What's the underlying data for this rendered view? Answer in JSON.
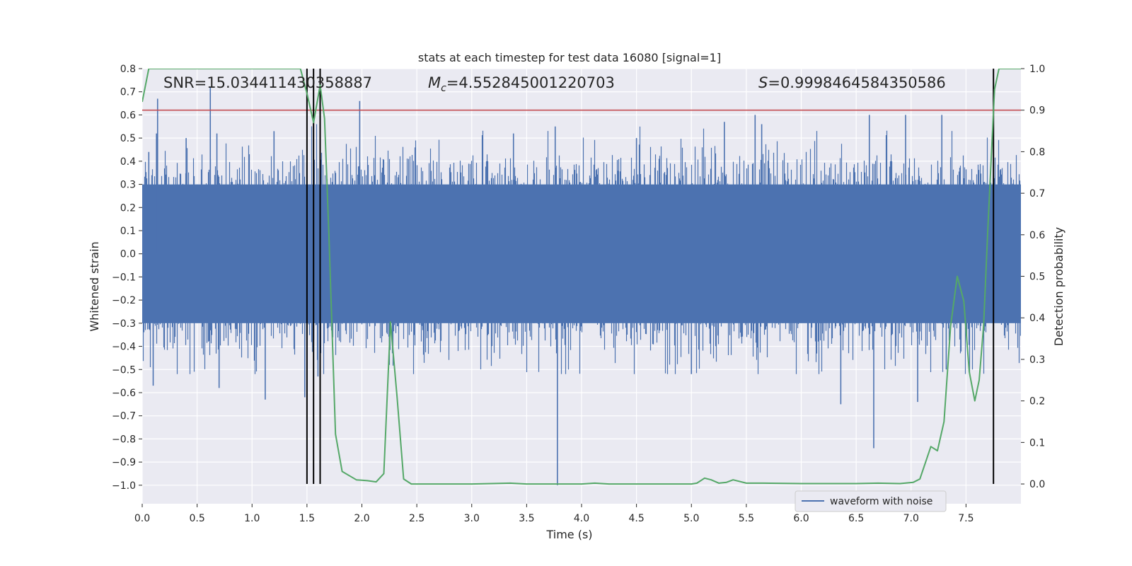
{
  "chart_data": {
    "type": "line",
    "title": "stats at each timestep for test data 16080 [signal=1]",
    "xlabel": "Time (s)",
    "ylabel": "Whitened strain",
    "y2label": "Detection probability",
    "xlim": [
      0.0,
      8.0
    ],
    "ylim": [
      -1.08,
      0.8
    ],
    "y2lim": [
      -0.0476,
      1.0
    ],
    "x_ticks": [
      0.0,
      0.5,
      1.0,
      1.5,
      2.0,
      2.5,
      3.0,
      3.5,
      4.0,
      4.5,
      5.0,
      5.5,
      6.0,
      6.5,
      7.0,
      7.5
    ],
    "x_tick_labels": [
      "0.0",
      "0.5",
      "1.0",
      "1.5",
      "2.0",
      "2.5",
      "3.0",
      "3.5",
      "4.0",
      "4.5",
      "5.0",
      "5.5",
      "6.0",
      "6.5",
      "7.0",
      "7.5"
    ],
    "y_ticks": [
      0.8,
      0.7,
      0.6,
      0.5,
      0.4,
      0.3,
      0.2,
      0.1,
      0.0,
      -0.1,
      -0.2,
      -0.3,
      -0.4,
      -0.5,
      -0.6,
      -0.7,
      -0.8,
      -0.9,
      -1.0
    ],
    "y_tick_labels": [
      "0.8",
      "0.7",
      "0.6",
      "0.5",
      "0.4",
      "0.3",
      "0.2",
      "0.1",
      "0.0",
      "−0.1",
      "−0.2",
      "−0.3",
      "−0.4",
      "−0.5",
      "−0.6",
      "−0.7",
      "−0.8",
      "−0.9",
      "−1.0"
    ],
    "y2_ticks": [
      1.0,
      0.9,
      0.8,
      0.7,
      0.6,
      0.5,
      0.4,
      0.3,
      0.2,
      0.1,
      0.0
    ],
    "y2_tick_labels": [
      "1.0",
      "0.9",
      "0.8",
      "0.7",
      "0.6",
      "0.5",
      "0.4",
      "0.3",
      "0.2",
      "0.1",
      "0.0"
    ],
    "grid": true,
    "legend": {
      "position": "lower-right",
      "entries": [
        "waveform with noise"
      ]
    },
    "annotations": {
      "snr": "SNR=15.034411430358887",
      "mc_symbol": "M",
      "mc_sub": "c",
      "mc_value": "=4.552845001220703",
      "s_symbol": "S",
      "s_value": "=0.9998464584350586"
    },
    "threshold_line": {
      "axis": "y2",
      "value": 0.9,
      "color": "#c44e52"
    },
    "vertical_lines": {
      "x": [
        1.5,
        1.56,
        1.62,
        7.75
      ],
      "y2_range": [
        0.0,
        1.0
      ],
      "color": "#000000"
    },
    "waveform": {
      "name": "waveform with noise",
      "color": "#4c72b0",
      "x_range": [
        0.0,
        8.0
      ],
      "envelope_core": [
        -0.3,
        0.3
      ],
      "typical_excursion": [
        -0.5,
        0.55
      ],
      "spikes": [
        {
          "x": 0.06,
          "y": 0.44
        },
        {
          "x": 0.1,
          "y": -0.57
        },
        {
          "x": 0.13,
          "y": 0.52
        },
        {
          "x": 0.14,
          "y": 0.67
        },
        {
          "x": 0.4,
          "y": 0.5
        },
        {
          "x": 0.62,
          "y": 0.72
        },
        {
          "x": 0.68,
          "y": 0.52
        },
        {
          "x": 0.7,
          "y": -0.58
        },
        {
          "x": 1.12,
          "y": -0.63
        },
        {
          "x": 1.2,
          "y": 0.53
        },
        {
          "x": 1.48,
          "y": -0.62
        },
        {
          "x": 1.62,
          "y": 0.63
        },
        {
          "x": 1.6,
          "y": -0.53
        },
        {
          "x": 1.98,
          "y": 0.66
        },
        {
          "x": 2.25,
          "y": -0.48
        },
        {
          "x": 3.38,
          "y": 0.52
        },
        {
          "x": 3.76,
          "y": 0.55
        },
        {
          "x": 3.78,
          "y": -1.0
        },
        {
          "x": 4.5,
          "y": 0.5
        },
        {
          "x": 5.0,
          "y": -0.52
        },
        {
          "x": 5.3,
          "y": 0.57
        },
        {
          "x": 5.58,
          "y": 0.6
        },
        {
          "x": 5.64,
          "y": 0.56
        },
        {
          "x": 6.36,
          "y": -0.65
        },
        {
          "x": 6.62,
          "y": 0.6
        },
        {
          "x": 6.66,
          "y": -0.84
        },
        {
          "x": 6.95,
          "y": 0.6
        },
        {
          "x": 7.06,
          "y": -0.64
        },
        {
          "x": 7.28,
          "y": 0.6
        },
        {
          "x": 7.32,
          "y": -0.5
        }
      ]
    },
    "detection_probability": {
      "color": "#55a868",
      "points": [
        [
          0.0,
          0.92
        ],
        [
          0.06,
          1.0
        ],
        [
          0.2,
          1.0
        ],
        [
          0.5,
          1.0
        ],
        [
          1.0,
          1.0
        ],
        [
          1.3,
          1.0
        ],
        [
          1.44,
          1.0
        ],
        [
          1.5,
          0.94
        ],
        [
          1.56,
          0.87
        ],
        [
          1.62,
          0.96
        ],
        [
          1.66,
          0.88
        ],
        [
          1.7,
          0.6
        ],
        [
          1.76,
          0.12
        ],
        [
          1.82,
          0.03
        ],
        [
          1.95,
          0.01
        ],
        [
          2.05,
          0.008
        ],
        [
          2.13,
          0.005
        ],
        [
          2.2,
          0.025
        ],
        [
          2.26,
          0.39
        ],
        [
          2.32,
          0.21
        ],
        [
          2.38,
          0.012
        ],
        [
          2.45,
          0.0
        ],
        [
          2.6,
          0.0
        ],
        [
          3.0,
          0.0
        ],
        [
          3.35,
          0.002
        ],
        [
          3.5,
          0.0
        ],
        [
          4.0,
          0.0
        ],
        [
          4.12,
          0.002
        ],
        [
          4.25,
          0.0
        ],
        [
          4.5,
          0.0
        ],
        [
          5.0,
          0.0
        ],
        [
          5.05,
          0.002
        ],
        [
          5.12,
          0.014
        ],
        [
          5.18,
          0.01
        ],
        [
          5.25,
          0.002
        ],
        [
          5.32,
          0.004
        ],
        [
          5.38,
          0.01
        ],
        [
          5.5,
          0.002
        ],
        [
          5.65,
          0.002
        ],
        [
          6.0,
          0.001
        ],
        [
          6.5,
          0.001
        ],
        [
          6.7,
          0.002
        ],
        [
          6.9,
          0.001
        ],
        [
          7.02,
          0.004
        ],
        [
          7.08,
          0.012
        ],
        [
          7.18,
          0.09
        ],
        [
          7.24,
          0.08
        ],
        [
          7.3,
          0.15
        ],
        [
          7.36,
          0.38
        ],
        [
          7.42,
          0.5
        ],
        [
          7.48,
          0.44
        ],
        [
          7.53,
          0.27
        ],
        [
          7.58,
          0.2
        ],
        [
          7.62,
          0.25
        ],
        [
          7.66,
          0.38
        ],
        [
          7.7,
          0.62
        ],
        [
          7.76,
          0.95
        ],
        [
          7.8,
          1.0
        ],
        [
          7.84,
          1.0
        ],
        [
          7.9,
          1.0
        ],
        [
          8.0,
          1.0
        ]
      ]
    }
  }
}
